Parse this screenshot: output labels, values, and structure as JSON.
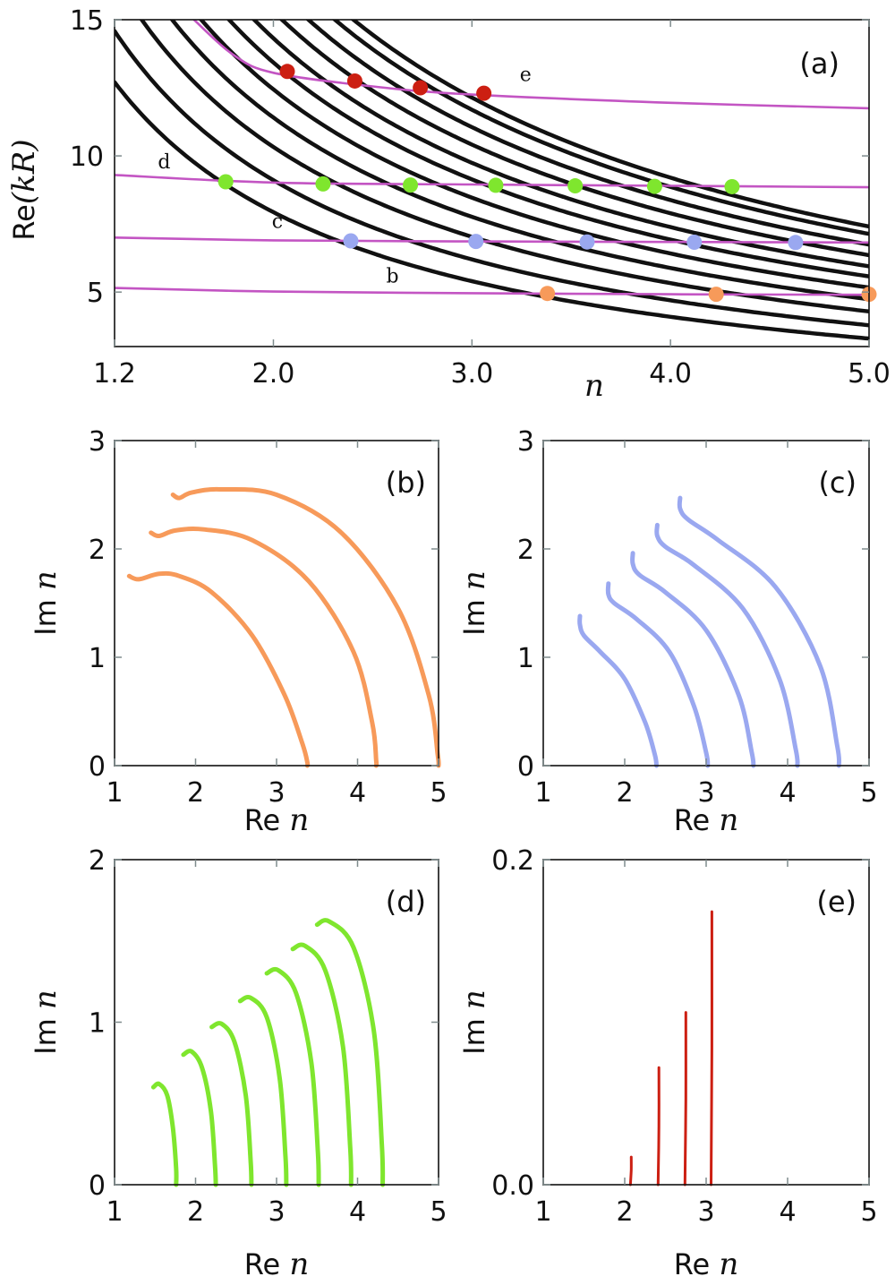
{
  "colors": {
    "magenta": "#c355c3",
    "black": "#111111",
    "orange": "#f79a5a",
    "blue": "#9aa8f0",
    "green": "#7fe62e",
    "red": "#cc1f12",
    "tick": "#7f8c8d"
  },
  "chart_data": [
    {
      "id": "a",
      "type": "line",
      "panel_label": "(a)",
      "xlabel": "n",
      "ylabel_prefix": "Re",
      "ylabel_arg": "(kR)",
      "xlim": [
        1.2,
        5.0
      ],
      "ylim": [
        3.0,
        15.0
      ],
      "xticks": [
        1.2,
        2.0,
        3.0,
        4.0,
        5.0
      ],
      "xtick_labels": [
        "1.2",
        "2.0",
        "3.0",
        "4.0",
        "5.0"
      ],
      "yticks": [
        5,
        10,
        15
      ],
      "ytick_labels": [
        "5",
        "10",
        "15"
      ],
      "black_families_k": [
        16.9,
        19.4,
        22.0,
        24.3,
        26.5,
        28.6,
        30.5,
        32.6,
        34.6,
        36.6,
        38.0
      ],
      "magenta_series": [
        {
          "name": "b",
          "x": [
            1.2,
            2.0,
            3.0,
            4.0,
            5.0
          ],
          "y": [
            5.15,
            5.02,
            4.96,
            4.92,
            4.9
          ]
        },
        {
          "name": "c",
          "x": [
            1.2,
            2.0,
            3.0,
            4.0,
            5.0
          ],
          "y": [
            7.0,
            6.9,
            6.86,
            6.84,
            6.82
          ]
        },
        {
          "name": "d",
          "x": [
            1.2,
            2.0,
            3.0,
            4.0,
            5.0
          ],
          "y": [
            9.3,
            9.02,
            8.95,
            8.9,
            8.85
          ]
        },
        {
          "name": "e",
          "x": [
            1.6,
            1.8,
            2.0,
            2.5,
            3.0,
            4.0,
            5.0
          ],
          "y": [
            15.0,
            13.7,
            13.05,
            12.55,
            12.25,
            11.95,
            11.75
          ]
        }
      ],
      "curve_labels": [
        {
          "text": "b",
          "x": 2.6,
          "y": 5.35
        },
        {
          "text": "c",
          "x": 2.02,
          "y": 7.35
        },
        {
          "text": "d",
          "x": 1.45,
          "y": 9.55
        },
        {
          "text": "e",
          "x": 3.27,
          "y": 12.75
        }
      ],
      "marker_groups": [
        {
          "color": "orange",
          "points": [
            [
              3.38,
              4.95
            ],
            [
              4.23,
              4.92
            ],
            [
              5.0,
              4.92
            ]
          ]
        },
        {
          "color": "blue",
          "points": [
            [
              2.39,
              6.88
            ],
            [
              3.02,
              6.86
            ],
            [
              3.58,
              6.84
            ],
            [
              4.12,
              6.83
            ],
            [
              4.63,
              6.82
            ]
          ]
        },
        {
          "color": "green",
          "points": [
            [
              1.76,
              9.05
            ],
            [
              2.25,
              8.97
            ],
            [
              2.69,
              8.93
            ],
            [
              3.12,
              8.92
            ],
            [
              3.52,
              8.9
            ],
            [
              3.92,
              8.88
            ],
            [
              4.31,
              8.87
            ]
          ]
        },
        {
          "color": "red",
          "points": [
            [
              2.07,
              13.1
            ],
            [
              2.41,
              12.75
            ],
            [
              2.74,
              12.5
            ],
            [
              3.06,
              12.3
            ]
          ]
        }
      ]
    },
    {
      "id": "b",
      "type": "line",
      "panel_label": "(b)",
      "xlabel_prefix": "Re",
      "xlabel_var": "n",
      "ylabel_prefix": "Im",
      "ylabel_var": "n",
      "xlim": [
        1,
        5
      ],
      "ylim": [
        0,
        3
      ],
      "xticks": [
        1,
        2,
        3,
        4,
        5
      ],
      "xtick_labels": [
        "1",
        "2",
        "3",
        "4",
        "5"
      ],
      "yticks": [
        0,
        1,
        2,
        3
      ],
      "ytick_labels": [
        "0",
        "1",
        "2",
        "3"
      ],
      "color": "orange",
      "series": [
        {
          "name": "b1",
          "x": [
            1.18,
            1.3,
            1.55,
            1.8,
            2.2,
            2.7,
            3.1,
            3.32,
            3.38,
            3.38
          ],
          "y": [
            1.75,
            1.72,
            1.77,
            1.75,
            1.6,
            1.2,
            0.65,
            0.2,
            0.03,
            0.0
          ]
        },
        {
          "name": "b2",
          "x": [
            1.45,
            1.55,
            1.75,
            2.1,
            2.7,
            3.4,
            3.95,
            4.18,
            4.23,
            4.23
          ],
          "y": [
            2.15,
            2.12,
            2.17,
            2.18,
            2.08,
            1.7,
            1.05,
            0.4,
            0.05,
            0.0
          ]
        },
        {
          "name": "b3",
          "x": [
            1.72,
            1.8,
            1.95,
            2.3,
            3.0,
            3.8,
            4.5,
            4.88,
            4.99,
            5.0
          ],
          "y": [
            2.5,
            2.47,
            2.52,
            2.55,
            2.5,
            2.15,
            1.45,
            0.65,
            0.1,
            0.0
          ]
        }
      ]
    },
    {
      "id": "c",
      "type": "line",
      "panel_label": "(c)",
      "xlabel_prefix": "Re",
      "xlabel_var": "n",
      "ylabel_prefix": "Im",
      "ylabel_var": "n",
      "xlim": [
        1,
        5
      ],
      "ylim": [
        0,
        3
      ],
      "xticks": [
        1,
        2,
        3,
        4,
        5
      ],
      "xtick_labels": [
        "1",
        "2",
        "3",
        "4",
        "5"
      ],
      "yticks": [
        0,
        1,
        2,
        3
      ],
      "ytick_labels": [
        "0",
        "1",
        "2",
        "3"
      ],
      "color": "blue",
      "series": [
        {
          "name": "c1",
          "x": [
            1.45,
            1.45,
            1.5,
            1.7,
            2.0,
            2.25,
            2.37,
            2.39
          ],
          "y": [
            1.38,
            1.3,
            1.2,
            1.05,
            0.8,
            0.4,
            0.1,
            0.0
          ]
        },
        {
          "name": "c2",
          "x": [
            1.8,
            1.8,
            1.87,
            2.15,
            2.55,
            2.85,
            3.0,
            3.02
          ],
          "y": [
            1.68,
            1.58,
            1.5,
            1.35,
            1.05,
            0.55,
            0.12,
            0.0
          ]
        },
        {
          "name": "c3",
          "x": [
            2.1,
            2.1,
            2.18,
            2.5,
            3.0,
            3.4,
            3.56,
            3.58
          ],
          "y": [
            1.96,
            1.86,
            1.76,
            1.6,
            1.25,
            0.65,
            0.12,
            0.0
          ]
        },
        {
          "name": "c4",
          "x": [
            2.4,
            2.4,
            2.5,
            2.85,
            3.45,
            3.9,
            4.1,
            4.12
          ],
          "y": [
            2.22,
            2.12,
            2.02,
            1.85,
            1.45,
            0.8,
            0.15,
            0.0
          ]
        },
        {
          "name": "c5",
          "x": [
            2.68,
            2.68,
            2.78,
            3.15,
            3.85,
            4.4,
            4.61,
            4.63
          ],
          "y": [
            2.47,
            2.37,
            2.27,
            2.08,
            1.65,
            0.92,
            0.18,
            0.0
          ]
        }
      ]
    },
    {
      "id": "d",
      "type": "line",
      "panel_label": "(d)",
      "xlabel_prefix": "Re",
      "xlabel_var": "n",
      "ylabel_prefix": "Im",
      "ylabel_var": "n",
      "xlim": [
        1,
        5
      ],
      "ylim": [
        0,
        2
      ],
      "xticks": [
        1,
        2,
        3,
        4,
        5
      ],
      "xtick_labels": [
        "1",
        "2",
        "3",
        "4",
        "5"
      ],
      "yticks": [
        0,
        1,
        2
      ],
      "ytick_labels": [
        "0",
        "1",
        "2"
      ],
      "color": "green",
      "series": [
        {
          "name": "d1",
          "x": [
            1.48,
            1.55,
            1.65,
            1.72,
            1.76,
            1.76
          ],
          "y": [
            0.6,
            0.62,
            0.55,
            0.35,
            0.1,
            0.0
          ]
        },
        {
          "name": "d2",
          "x": [
            1.85,
            1.95,
            2.08,
            2.19,
            2.24,
            2.25
          ],
          "y": [
            0.8,
            0.82,
            0.72,
            0.45,
            0.12,
            0.0
          ]
        },
        {
          "name": "d3",
          "x": [
            2.2,
            2.32,
            2.48,
            2.62,
            2.68,
            2.69
          ],
          "y": [
            0.97,
            0.99,
            0.88,
            0.55,
            0.15,
            0.0
          ]
        },
        {
          "name": "d4",
          "x": [
            2.55,
            2.68,
            2.88,
            3.04,
            3.11,
            3.12
          ],
          "y": [
            1.13,
            1.15,
            1.03,
            0.65,
            0.17,
            0.0
          ]
        },
        {
          "name": "d5",
          "x": [
            2.88,
            3.02,
            3.24,
            3.43,
            3.51,
            3.52
          ],
          "y": [
            1.3,
            1.32,
            1.18,
            0.75,
            0.2,
            0.0
          ]
        },
        {
          "name": "d6",
          "x": [
            3.2,
            3.35,
            3.6,
            3.82,
            3.91,
            3.92
          ],
          "y": [
            1.45,
            1.47,
            1.32,
            0.85,
            0.22,
            0.0
          ]
        },
        {
          "name": "d7",
          "x": [
            3.5,
            3.65,
            3.95,
            4.2,
            4.3,
            4.31
          ],
          "y": [
            1.6,
            1.62,
            1.46,
            0.95,
            0.25,
            0.0
          ]
        }
      ]
    },
    {
      "id": "e",
      "type": "line",
      "panel_label": "(e)",
      "xlabel_prefix": "Re",
      "xlabel_var": "n",
      "ylabel_prefix": "Im",
      "ylabel_var": "n",
      "xlim": [
        1,
        5
      ],
      "ylim": [
        0,
        0.2
      ],
      "xticks": [
        1,
        2,
        3,
        4,
        5
      ],
      "xtick_labels": [
        "1",
        "2",
        "3",
        "4",
        "5"
      ],
      "yticks": [
        0,
        0.2
      ],
      "ytick_labels": [
        "0.0",
        "0.2"
      ],
      "color": "red",
      "series": [
        {
          "name": "e1",
          "x": [
            2.07,
            2.08,
            2.08
          ],
          "y": [
            0.0,
            0.009,
            0.017
          ]
        },
        {
          "name": "e2",
          "x": [
            2.41,
            2.42,
            2.42
          ],
          "y": [
            0.0,
            0.036,
            0.072
          ]
        },
        {
          "name": "e3",
          "x": [
            2.74,
            2.75,
            2.75
          ],
          "y": [
            0.0,
            0.053,
            0.106
          ]
        },
        {
          "name": "e4",
          "x": [
            3.06,
            3.07,
            3.07
          ],
          "y": [
            0.0,
            0.084,
            0.168
          ]
        }
      ]
    }
  ]
}
